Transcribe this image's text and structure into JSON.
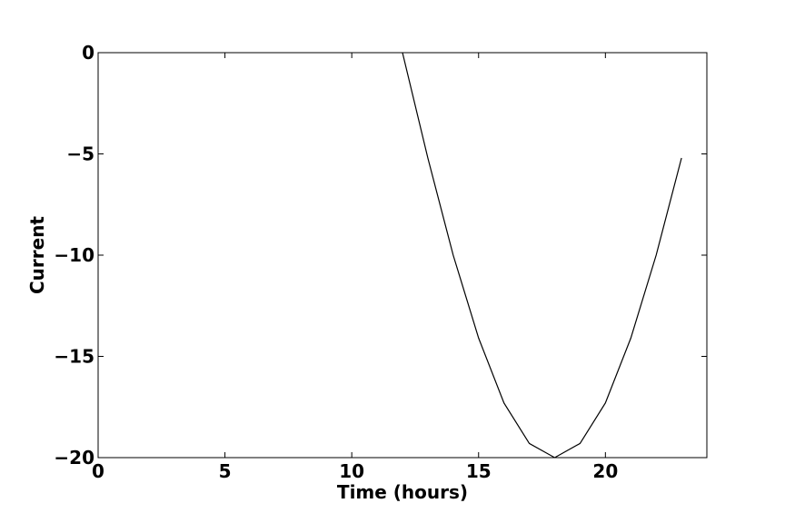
{
  "chart_data": {
    "type": "line",
    "title": "",
    "xlabel": "Time (hours)",
    "ylabel": "Current",
    "xlim": [
      0,
      24
    ],
    "ylim": [
      -20,
      0
    ],
    "x_ticks": [
      0,
      5,
      10,
      15,
      20
    ],
    "x_tick_labels": [
      "0",
      "5",
      "10",
      "15",
      "20"
    ],
    "y_ticks": [
      0,
      -5,
      -10,
      -15,
      -20
    ],
    "y_tick_labels": [
      "0",
      "−5",
      "−10",
      "−15",
      "−20"
    ],
    "grid": false,
    "series": [
      {
        "color": "#000000",
        "x": [
          12,
          13,
          14,
          15,
          16,
          17,
          18,
          19,
          20,
          21,
          22,
          23
        ],
        "y": [
          0,
          -5.2,
          -10.0,
          -14.1,
          -17.3,
          -19.3,
          -20.0,
          -19.3,
          -17.3,
          -14.1,
          -10.0,
          -5.2
        ]
      }
    ]
  }
}
